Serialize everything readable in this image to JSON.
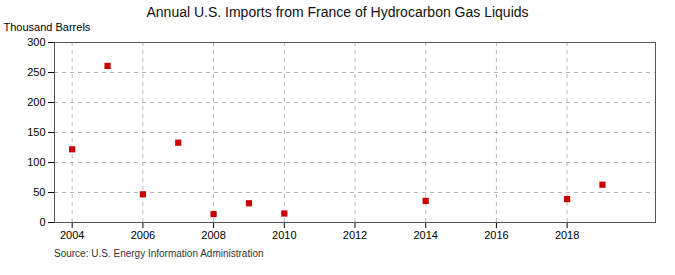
{
  "chart_data": {
    "type": "scatter",
    "title": "Annual U.S. Imports from France of Hydrocarbon Gas Liquids",
    "ylabel": "Thousand Barrels",
    "source": "Source: U.S. Energy Information Administration",
    "x": [
      2004,
      2005,
      2006,
      2007,
      2008,
      2009,
      2010,
      2014,
      2018,
      2019
    ],
    "values": [
      122,
      261,
      47,
      133,
      14,
      32,
      15,
      36,
      39,
      63
    ],
    "color": "#cc0000",
    "marker": "square",
    "xlim": [
      2003.5,
      2020.5
    ],
    "ylim": [
      0,
      300
    ],
    "xticks": [
      2004,
      2006,
      2008,
      2010,
      2012,
      2014,
      2016,
      2018
    ],
    "yticks": [
      0,
      50,
      100,
      150,
      200,
      250,
      300
    ],
    "grid": true
  }
}
